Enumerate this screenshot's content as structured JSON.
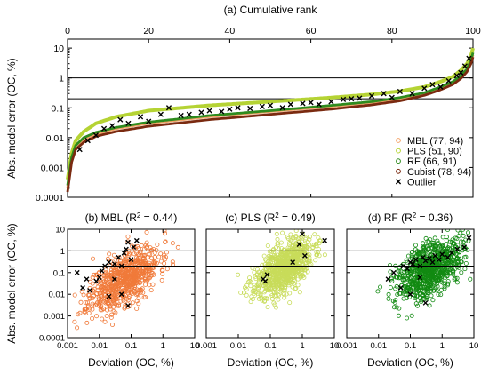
{
  "chart_data": [
    {
      "panel": "a",
      "type": "line",
      "title": "(a) Cumulative rank",
      "ylabel": "Abs. model error (OC, %)",
      "xlim": [
        0,
        100
      ],
      "ylim": [
        0.0001,
        20
      ],
      "ylog": true,
      "x_ticks": [
        "0",
        "20",
        "40",
        "60",
        "80",
        "100"
      ],
      "y_ticks": [
        "0.0001",
        "0.001",
        "0.01",
        "0.1",
        "1",
        "10"
      ],
      "hlines": [
        0.2,
        1
      ],
      "series": [
        {
          "name": "MBL (77, 94)",
          "color": "#F4A46A",
          "width": 2.8,
          "x": [
            0,
            1,
            2,
            4,
            7,
            12,
            20,
            35,
            50,
            65,
            75,
            82,
            88,
            92,
            95,
            97,
            98.5,
            99.5,
            100
          ],
          "y": [
            0.0002,
            0.002,
            0.005,
            0.009,
            0.013,
            0.02,
            0.03,
            0.05,
            0.075,
            0.11,
            0.15,
            0.2,
            0.3,
            0.45,
            0.7,
            1.1,
            1.8,
            3.5,
            6
          ]
        },
        {
          "name": "PLS (51, 90)",
          "color": "#B5D334",
          "width": 4,
          "x": [
            0,
            1,
            2,
            4,
            7,
            12,
            20,
            35,
            50,
            65,
            75,
            82,
            88,
            92,
            95,
            97,
            98.5,
            99.5,
            100
          ],
          "y": [
            0.0004,
            0.003,
            0.008,
            0.016,
            0.03,
            0.05,
            0.08,
            0.12,
            0.16,
            0.22,
            0.28,
            0.36,
            0.5,
            0.75,
            1.1,
            1.8,
            3,
            5.5,
            10
          ]
        },
        {
          "name": "RF  (66, 91)",
          "color": "#2E8B1E",
          "width": 2.8,
          "x": [
            0,
            1,
            2,
            4,
            7,
            12,
            20,
            35,
            50,
            65,
            75,
            82,
            88,
            92,
            95,
            97,
            98.5,
            99.5,
            100
          ],
          "y": [
            0.00025,
            0.0022,
            0.0055,
            0.01,
            0.015,
            0.022,
            0.033,
            0.055,
            0.08,
            0.12,
            0.16,
            0.22,
            0.32,
            0.5,
            0.75,
            1.2,
            2,
            3.8,
            7
          ]
        },
        {
          "name": "Cubist (78, 94)",
          "color": "#7A2A10",
          "width": 2.8,
          "x": [
            0,
            1,
            2,
            4,
            7,
            12,
            20,
            35,
            50,
            65,
            75,
            82,
            88,
            92,
            95,
            97,
            98.5,
            99.5,
            100
          ],
          "y": [
            0.00015,
            0.0015,
            0.004,
            0.007,
            0.011,
            0.016,
            0.024,
            0.04,
            0.06,
            0.09,
            0.125,
            0.17,
            0.26,
            0.4,
            0.6,
            0.95,
            1.6,
            3,
            5
          ]
        }
      ],
      "outlier": {
        "name": "Outlier",
        "x": [
          3,
          5,
          7,
          9,
          11,
          13,
          15,
          18,
          20,
          23,
          25,
          28,
          30,
          33,
          35,
          38,
          40,
          42,
          45,
          48,
          50,
          53,
          55,
          58,
          60,
          62,
          65,
          68,
          70,
          72,
          75,
          78,
          80,
          82,
          85,
          88,
          90,
          92,
          94,
          96,
          97,
          98,
          99
        ],
        "y": [
          0.004,
          0.008,
          0.012,
          0.02,
          0.025,
          0.04,
          0.03,
          0.05,
          0.035,
          0.06,
          0.1,
          0.055,
          0.06,
          0.07,
          0.08,
          0.075,
          0.09,
          0.1,
          0.095,
          0.11,
          0.12,
          0.1,
          0.13,
          0.14,
          0.15,
          0.13,
          0.16,
          0.19,
          0.2,
          0.21,
          0.25,
          0.3,
          0.22,
          0.35,
          0.3,
          0.45,
          0.6,
          0.5,
          0.8,
          1.2,
          1.5,
          2.5,
          4.5
        ]
      },
      "legend_position": "bottom-right"
    },
    {
      "panel": "b",
      "type": "scatter",
      "title_prefix": "(b) MBL (R",
      "title_sup": "2",
      "title_suffix": " = 0.44)",
      "xlabel": "Deviation (OC, %)",
      "ylabel": "Abs. model error (OC, %)",
      "xlim": [
        0.001,
        10
      ],
      "ylim": [
        0.0001,
        10
      ],
      "xlog": true,
      "ylog": true,
      "x_ticks": [
        "0.001",
        "0.01",
        "0.1",
        "1",
        "10"
      ],
      "y_ticks": [
        "0.0001",
        "0.001",
        "0.01",
        "0.1",
        "1",
        "10"
      ],
      "hlines": [
        0.2,
        1
      ],
      "color": "#F07A3A",
      "cloud": {
        "cx": 0.06,
        "cy": 0.05,
        "sx": 0.55,
        "sy": 0.75,
        "corr": 0.6,
        "n": 700,
        "seed": 11
      },
      "outliers": {
        "x": [
          0.002,
          0.003,
          0.004,
          0.005,
          0.008,
          0.01,
          0.012,
          0.015,
          0.02,
          0.03,
          0.04,
          0.05,
          0.06,
          0.07,
          0.08,
          0.1,
          0.12,
          0.15,
          0.02,
          0.03,
          0.05,
          0.08
        ],
        "y": [
          0.1,
          0.02,
          0.05,
          0.015,
          0.04,
          0.06,
          0.12,
          0.2,
          0.3,
          0.25,
          0.5,
          0.2,
          0.8,
          1.2,
          2.5,
          0.4,
          1.5,
          3,
          0.008,
          0.05,
          0.01,
          0.003
        ]
      }
    },
    {
      "panel": "c",
      "type": "scatter",
      "title_prefix": "(c) PLS (R",
      "title_sup": "2",
      "title_suffix": " = 0.49)",
      "xlabel": "Deviation (OC, %)",
      "xlim": [
        0.001,
        10
      ],
      "ylim": [
        0.0001,
        10
      ],
      "xlog": true,
      "ylog": true,
      "x_ticks": [
        "0.001",
        "0.01",
        "0.1",
        "1",
        "10"
      ],
      "hlines": [
        0.2,
        1
      ],
      "color": "#C8DC5A",
      "cloud": {
        "cx": 0.25,
        "cy": 0.15,
        "sx": 0.45,
        "sy": 0.65,
        "corr": 0.55,
        "n": 800,
        "seed": 23
      },
      "outliers": {
        "x": [
          0.06,
          0.07,
          0.08,
          0.5,
          0.8,
          1,
          1.2,
          5
        ],
        "y": [
          0.05,
          0.04,
          0.08,
          0.3,
          2,
          6,
          0.6,
          3
        ]
      }
    },
    {
      "panel": "d",
      "type": "scatter",
      "title_prefix": "(d) RF (R",
      "title_sup": "2",
      "title_suffix": " = 0.36)",
      "xlabel": "Deviation (OC, %)",
      "xlim": [
        0.001,
        10
      ],
      "ylim": [
        0.0001,
        10
      ],
      "xlog": true,
      "ylog": true,
      "x_ticks": [
        "0.001",
        "0.01",
        "0.1",
        "1",
        "10"
      ],
      "hlines": [
        0.2,
        1
      ],
      "color": "#128A12",
      "cloud": {
        "cx": 0.4,
        "cy": 0.15,
        "sx": 0.5,
        "sy": 0.7,
        "corr": 0.5,
        "n": 800,
        "seed": 37
      },
      "outliers": {
        "x": [
          0.02,
          0.03,
          0.05,
          0.06,
          0.08,
          0.1,
          0.12,
          0.15,
          0.2,
          0.25,
          0.3,
          0.4,
          0.5,
          0.6,
          0.8,
          1,
          1.5,
          2,
          3,
          5,
          7,
          0.1,
          0.2,
          0.3
        ],
        "y": [
          0.05,
          0.1,
          0.02,
          0.2,
          0.15,
          0.3,
          0.25,
          0.4,
          0.2,
          0.5,
          0.35,
          0.45,
          0.3,
          0.6,
          0.4,
          0.7,
          0.5,
          0.8,
          1.2,
          1.5,
          4,
          0.01,
          0.06,
          0.004
        ]
      }
    }
  ]
}
